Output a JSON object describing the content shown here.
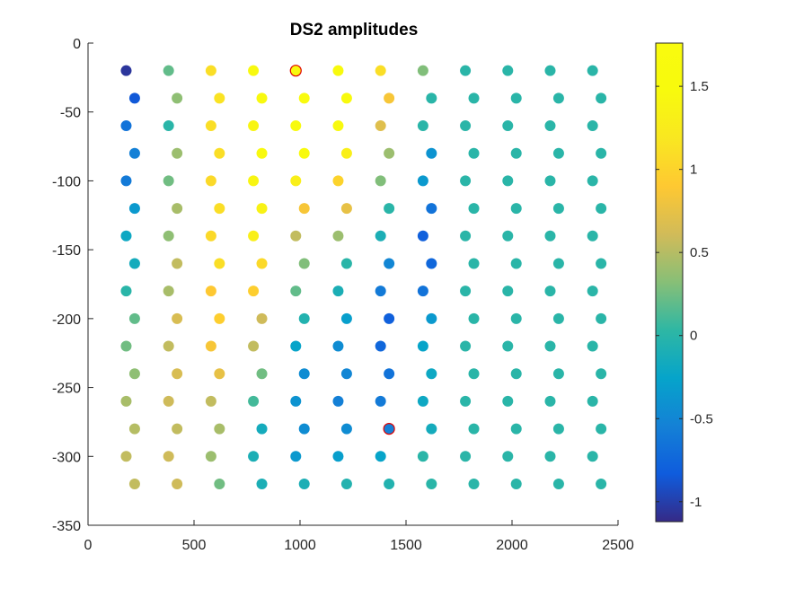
{
  "chart_data": {
    "type": "scatter",
    "title": "DS2 amplitudes",
    "xlabel": "",
    "ylabel": "",
    "xlim": [
      0,
      2500
    ],
    "ylim": [
      -350,
      0
    ],
    "x_ticks": [
      "0",
      "500",
      "1000",
      "1500",
      "2000",
      "2500"
    ],
    "x_tick_values": [
      0,
      500,
      1000,
      1500,
      2000,
      2500
    ],
    "y_ticks": [
      "0",
      "-50",
      "-100",
      "-150",
      "-200",
      "-250",
      "-300",
      "-350"
    ],
    "y_tick_values": [
      0,
      -50,
      -100,
      -150,
      -200,
      -250,
      -300,
      -350
    ],
    "grid": false,
    "colormap": "parula",
    "colorbar": {
      "clim": [
        -1.12,
        1.76
      ],
      "ticks": [
        "1.5",
        "1",
        "0.5",
        "0",
        "-0.5",
        "-1"
      ],
      "tick_values": [
        1.5,
        1,
        0.5,
        0,
        -0.5,
        -1
      ]
    },
    "highlight_color": "#e00000",
    "series": [
      {
        "points": [
          {
            "x": 180,
            "y": -20,
            "value": -1.05
          },
          {
            "x": 380,
            "y": -20,
            "value": 0.2
          },
          {
            "x": 580,
            "y": -20,
            "value": 1.1
          },
          {
            "x": 780,
            "y": -20,
            "value": 1.45
          },
          {
            "x": 980,
            "y": -20,
            "value": 1.6,
            "highlight": true
          },
          {
            "x": 1180,
            "y": -20,
            "value": 1.6
          },
          {
            "x": 1380,
            "y": -20,
            "value": 1.1
          },
          {
            "x": 1580,
            "y": -20,
            "value": 0.3
          },
          {
            "x": 1780,
            "y": -20,
            "value": 0
          },
          {
            "x": 1980,
            "y": -20,
            "value": 0
          },
          {
            "x": 2180,
            "y": -20,
            "value": 0
          },
          {
            "x": 2380,
            "y": -20,
            "value": 0
          },
          {
            "x": 220,
            "y": -40,
            "value": -0.85
          },
          {
            "x": 420,
            "y": -40,
            "value": 0.35
          },
          {
            "x": 620,
            "y": -40,
            "value": 1.15
          },
          {
            "x": 820,
            "y": -40,
            "value": 1.45
          },
          {
            "x": 1020,
            "y": -40,
            "value": 1.65
          },
          {
            "x": 1220,
            "y": -40,
            "value": 1.6
          },
          {
            "x": 1420,
            "y": -40,
            "value": 0.85
          },
          {
            "x": 1620,
            "y": -40,
            "value": 0
          },
          {
            "x": 1820,
            "y": -40,
            "value": 0
          },
          {
            "x": 2020,
            "y": -40,
            "value": 0
          },
          {
            "x": 2220,
            "y": -40,
            "value": 0
          },
          {
            "x": 2420,
            "y": -40,
            "value": 0
          },
          {
            "x": 180,
            "y": -60,
            "value": -0.65
          },
          {
            "x": 380,
            "y": -60,
            "value": 0
          },
          {
            "x": 580,
            "y": -60,
            "value": 1.1
          },
          {
            "x": 780,
            "y": -60,
            "value": 1.4
          },
          {
            "x": 980,
            "y": -60,
            "value": 1.6
          },
          {
            "x": 1180,
            "y": -60,
            "value": 1.45
          },
          {
            "x": 1380,
            "y": -60,
            "value": 0.7
          },
          {
            "x": 1580,
            "y": -60,
            "value": 0
          },
          {
            "x": 1780,
            "y": -60,
            "value": 0
          },
          {
            "x": 1980,
            "y": -60,
            "value": 0
          },
          {
            "x": 2180,
            "y": -60,
            "value": 0
          },
          {
            "x": 2380,
            "y": -60,
            "value": 0
          },
          {
            "x": 220,
            "y": -80,
            "value": -0.55
          },
          {
            "x": 420,
            "y": -80,
            "value": 0.4
          },
          {
            "x": 620,
            "y": -80,
            "value": 1.1
          },
          {
            "x": 820,
            "y": -80,
            "value": 1.45
          },
          {
            "x": 1020,
            "y": -80,
            "value": 1.55
          },
          {
            "x": 1220,
            "y": -80,
            "value": 1.3
          },
          {
            "x": 1420,
            "y": -80,
            "value": 0.4
          },
          {
            "x": 1620,
            "y": -80,
            "value": -0.4
          },
          {
            "x": 1820,
            "y": -80,
            "value": 0
          },
          {
            "x": 2020,
            "y": -80,
            "value": 0
          },
          {
            "x": 2220,
            "y": -80,
            "value": 0
          },
          {
            "x": 2420,
            "y": -80,
            "value": 0
          },
          {
            "x": 180,
            "y": -100,
            "value": -0.6
          },
          {
            "x": 380,
            "y": -100,
            "value": 0.25
          },
          {
            "x": 580,
            "y": -100,
            "value": 1.05
          },
          {
            "x": 780,
            "y": -100,
            "value": 1.4
          },
          {
            "x": 980,
            "y": -100,
            "value": 1.3
          },
          {
            "x": 1180,
            "y": -100,
            "value": 1.0
          },
          {
            "x": 1380,
            "y": -100,
            "value": 0.3
          },
          {
            "x": 1580,
            "y": -100,
            "value": -0.35
          },
          {
            "x": 1780,
            "y": -100,
            "value": 0
          },
          {
            "x": 1980,
            "y": -100,
            "value": 0
          },
          {
            "x": 2180,
            "y": -100,
            "value": 0
          },
          {
            "x": 2380,
            "y": -100,
            "value": 0
          },
          {
            "x": 220,
            "y": -120,
            "value": -0.35
          },
          {
            "x": 420,
            "y": -120,
            "value": 0.45
          },
          {
            "x": 620,
            "y": -120,
            "value": 1.1
          },
          {
            "x": 820,
            "y": -120,
            "value": 1.35
          },
          {
            "x": 1020,
            "y": -120,
            "value": 0.85
          },
          {
            "x": 1220,
            "y": -120,
            "value": 0.75
          },
          {
            "x": 1420,
            "y": -120,
            "value": 0
          },
          {
            "x": 1620,
            "y": -120,
            "value": -0.65
          },
          {
            "x": 1820,
            "y": -120,
            "value": 0
          },
          {
            "x": 2020,
            "y": -120,
            "value": 0
          },
          {
            "x": 2220,
            "y": -120,
            "value": 0
          },
          {
            "x": 2420,
            "y": -120,
            "value": 0
          },
          {
            "x": 180,
            "y": -140,
            "value": -0.2
          },
          {
            "x": 380,
            "y": -140,
            "value": 0.35
          },
          {
            "x": 580,
            "y": -140,
            "value": 1.05
          },
          {
            "x": 780,
            "y": -140,
            "value": 1.3
          },
          {
            "x": 980,
            "y": -140,
            "value": 0.55
          },
          {
            "x": 1180,
            "y": -140,
            "value": 0.4
          },
          {
            "x": 1380,
            "y": -140,
            "value": -0.1
          },
          {
            "x": 1580,
            "y": -140,
            "value": -0.8
          },
          {
            "x": 1780,
            "y": -140,
            "value": 0
          },
          {
            "x": 1980,
            "y": -140,
            "value": 0
          },
          {
            "x": 2180,
            "y": -140,
            "value": 0
          },
          {
            "x": 2380,
            "y": -140,
            "value": 0
          },
          {
            "x": 220,
            "y": -160,
            "value": -0.15
          },
          {
            "x": 420,
            "y": -160,
            "value": 0.55
          },
          {
            "x": 620,
            "y": -160,
            "value": 1.1
          },
          {
            "x": 820,
            "y": -160,
            "value": 1.05
          },
          {
            "x": 1020,
            "y": -160,
            "value": 0.3
          },
          {
            "x": 1220,
            "y": -160,
            "value": 0
          },
          {
            "x": 1420,
            "y": -160,
            "value": -0.5
          },
          {
            "x": 1620,
            "y": -160,
            "value": -0.75
          },
          {
            "x": 1820,
            "y": -160,
            "value": 0
          },
          {
            "x": 2020,
            "y": -160,
            "value": 0
          },
          {
            "x": 2220,
            "y": -160,
            "value": 0
          },
          {
            "x": 2420,
            "y": -160,
            "value": 0
          },
          {
            "x": 180,
            "y": -180,
            "value": 0
          },
          {
            "x": 380,
            "y": -180,
            "value": 0.45
          },
          {
            "x": 580,
            "y": -180,
            "value": 0.9
          },
          {
            "x": 780,
            "y": -180,
            "value": 0.95
          },
          {
            "x": 980,
            "y": -180,
            "value": 0.2
          },
          {
            "x": 1180,
            "y": -180,
            "value": -0.1
          },
          {
            "x": 1380,
            "y": -180,
            "value": -0.6
          },
          {
            "x": 1580,
            "y": -180,
            "value": -0.65
          },
          {
            "x": 1780,
            "y": -180,
            "value": 0
          },
          {
            "x": 1980,
            "y": -180,
            "value": 0
          },
          {
            "x": 2180,
            "y": -180,
            "value": 0
          },
          {
            "x": 2380,
            "y": -180,
            "value": 0
          },
          {
            "x": 220,
            "y": -200,
            "value": 0.2
          },
          {
            "x": 420,
            "y": -200,
            "value": 0.65
          },
          {
            "x": 620,
            "y": -200,
            "value": 0.95
          },
          {
            "x": 820,
            "y": -200,
            "value": 0.6
          },
          {
            "x": 1020,
            "y": -200,
            "value": -0.05
          },
          {
            "x": 1220,
            "y": -200,
            "value": -0.3
          },
          {
            "x": 1420,
            "y": -200,
            "value": -0.8
          },
          {
            "x": 1620,
            "y": -200,
            "value": -0.35
          },
          {
            "x": 1820,
            "y": -200,
            "value": 0
          },
          {
            "x": 2020,
            "y": -200,
            "value": 0
          },
          {
            "x": 2220,
            "y": -200,
            "value": 0
          },
          {
            "x": 2420,
            "y": -200,
            "value": 0
          },
          {
            "x": 180,
            "y": -220,
            "value": 0.25
          },
          {
            "x": 380,
            "y": -220,
            "value": 0.55
          },
          {
            "x": 580,
            "y": -220,
            "value": 0.85
          },
          {
            "x": 780,
            "y": -220,
            "value": 0.55
          },
          {
            "x": 980,
            "y": -220,
            "value": -0.25
          },
          {
            "x": 1180,
            "y": -220,
            "value": -0.45
          },
          {
            "x": 1380,
            "y": -220,
            "value": -0.75
          },
          {
            "x": 1580,
            "y": -220,
            "value": -0.25
          },
          {
            "x": 1780,
            "y": -220,
            "value": 0
          },
          {
            "x": 1980,
            "y": -220,
            "value": 0
          },
          {
            "x": 2180,
            "y": -220,
            "value": 0
          },
          {
            "x": 2380,
            "y": -220,
            "value": 0
          },
          {
            "x": 220,
            "y": -240,
            "value": 0.35
          },
          {
            "x": 420,
            "y": -240,
            "value": 0.65
          },
          {
            "x": 620,
            "y": -240,
            "value": 0.75
          },
          {
            "x": 820,
            "y": -240,
            "value": 0.25
          },
          {
            "x": 1020,
            "y": -240,
            "value": -0.45
          },
          {
            "x": 1220,
            "y": -240,
            "value": -0.5
          },
          {
            "x": 1420,
            "y": -240,
            "value": -0.65
          },
          {
            "x": 1620,
            "y": -240,
            "value": -0.2
          },
          {
            "x": 1820,
            "y": -240,
            "value": 0
          },
          {
            "x": 2020,
            "y": -240,
            "value": 0
          },
          {
            "x": 2220,
            "y": -240,
            "value": 0
          },
          {
            "x": 2420,
            "y": -240,
            "value": 0
          },
          {
            "x": 180,
            "y": -260,
            "value": 0.45
          },
          {
            "x": 380,
            "y": -260,
            "value": 0.6
          },
          {
            "x": 580,
            "y": -260,
            "value": 0.55
          },
          {
            "x": 780,
            "y": -260,
            "value": 0.1
          },
          {
            "x": 980,
            "y": -260,
            "value": -0.4
          },
          {
            "x": 1180,
            "y": -260,
            "value": -0.55
          },
          {
            "x": 1380,
            "y": -260,
            "value": -0.6
          },
          {
            "x": 1580,
            "y": -260,
            "value": -0.2
          },
          {
            "x": 1780,
            "y": -260,
            "value": 0
          },
          {
            "x": 1980,
            "y": -260,
            "value": 0
          },
          {
            "x": 2180,
            "y": -260,
            "value": 0
          },
          {
            "x": 2380,
            "y": -260,
            "value": 0
          },
          {
            "x": 220,
            "y": -280,
            "value": 0.5
          },
          {
            "x": 420,
            "y": -280,
            "value": 0.55
          },
          {
            "x": 620,
            "y": -280,
            "value": 0.45
          },
          {
            "x": 820,
            "y": -280,
            "value": -0.15
          },
          {
            "x": 1020,
            "y": -280,
            "value": -0.45
          },
          {
            "x": 1220,
            "y": -280,
            "value": -0.45
          },
          {
            "x": 1420,
            "y": -280,
            "value": -0.55,
            "highlight": true
          },
          {
            "x": 1620,
            "y": -280,
            "value": -0.15
          },
          {
            "x": 1820,
            "y": -280,
            "value": 0
          },
          {
            "x": 2020,
            "y": -280,
            "value": 0
          },
          {
            "x": 2220,
            "y": -280,
            "value": 0
          },
          {
            "x": 2420,
            "y": -280,
            "value": 0
          },
          {
            "x": 180,
            "y": -300,
            "value": 0.55
          },
          {
            "x": 380,
            "y": -300,
            "value": 0.6
          },
          {
            "x": 580,
            "y": -300,
            "value": 0.4
          },
          {
            "x": 780,
            "y": -300,
            "value": -0.1
          },
          {
            "x": 980,
            "y": -300,
            "value": -0.35
          },
          {
            "x": 1180,
            "y": -300,
            "value": -0.3
          },
          {
            "x": 1380,
            "y": -300,
            "value": -0.25
          },
          {
            "x": 1580,
            "y": -300,
            "value": 0
          },
          {
            "x": 1780,
            "y": -300,
            "value": 0
          },
          {
            "x": 1980,
            "y": -300,
            "value": 0
          },
          {
            "x": 2180,
            "y": -300,
            "value": 0
          },
          {
            "x": 2380,
            "y": -300,
            "value": 0
          },
          {
            "x": 220,
            "y": -320,
            "value": 0.55
          },
          {
            "x": 420,
            "y": -320,
            "value": 0.6
          },
          {
            "x": 620,
            "y": -320,
            "value": 0.25
          },
          {
            "x": 820,
            "y": -320,
            "value": -0.1
          },
          {
            "x": 1020,
            "y": -320,
            "value": -0.1
          },
          {
            "x": 1220,
            "y": -320,
            "value": -0.05
          },
          {
            "x": 1420,
            "y": -320,
            "value": -0.05
          },
          {
            "x": 1620,
            "y": -320,
            "value": 0
          },
          {
            "x": 1820,
            "y": -320,
            "value": 0
          },
          {
            "x": 2020,
            "y": -320,
            "value": 0
          },
          {
            "x": 2220,
            "y": -320,
            "value": 0
          },
          {
            "x": 2420,
            "y": -320,
            "value": 0
          }
        ]
      }
    ]
  }
}
